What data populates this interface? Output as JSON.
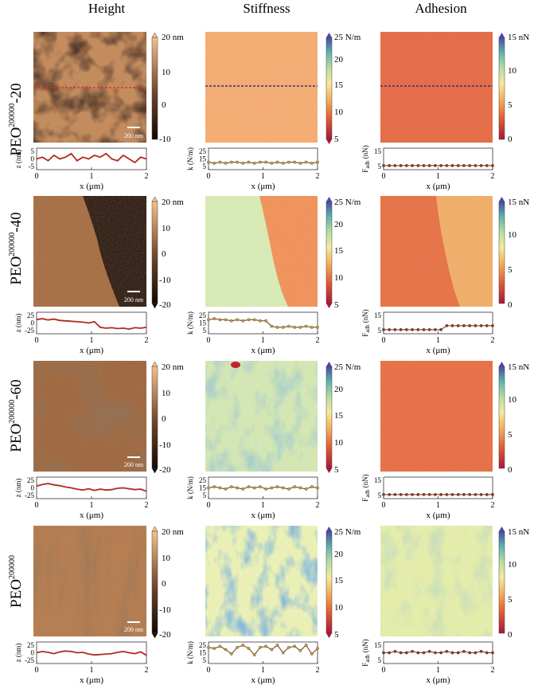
{
  "figure": {
    "column_titles": [
      "Height",
      "Stiffness",
      "Adhesion"
    ],
    "scale_bar_label": "200 nm",
    "profile_x_label_prefix": "x (",
    "profile_x_label_unit": "μm",
    "profile_x_label_suffix": ")",
    "profile_x_ticks": [
      "0",
      "1",
      "2"
    ],
    "colorbars": {
      "height_unit": "nm",
      "stiffness_unit": "N/m",
      "adhesion_unit": "nN",
      "stiffness_ticks": [
        "25",
        "20",
        "15",
        "10",
        "5"
      ],
      "adhesion_ticks": [
        "15",
        "10",
        "5",
        "0"
      ]
    },
    "profile_y_labels": {
      "height": "z (nm)",
      "stiffness": "k (N/m)",
      "adhesion_main": "F",
      "adhesion_sub": "adh",
      "adhesion_unit": " (nN)"
    },
    "rows": [
      {
        "label_main": "PEO",
        "label_sup": "200000",
        "label_suffix": "-20",
        "height_ticks": [
          "20",
          "10",
          "0",
          "-10"
        ],
        "height_profile_ticks": [
          "5",
          "0",
          "-5"
        ],
        "stiffness_profile_ticks": [
          "25",
          "15",
          "5"
        ],
        "adhesion_profile_ticks": [
          "15",
          "5"
        ],
        "has_line_marker": true
      },
      {
        "label_main": "PEO",
        "label_sup": "200000",
        "label_suffix": "-40",
        "height_ticks": [
          "20",
          "10",
          "0",
          "-10",
          "-20"
        ],
        "height_profile_ticks": [
          "25",
          "0",
          "-25"
        ],
        "stiffness_profile_ticks": [
          "25",
          "15",
          "5"
        ],
        "adhesion_profile_ticks": [
          "15",
          "5"
        ],
        "has_line_marker": false
      },
      {
        "label_main": "PEO",
        "label_sup": "200000",
        "label_suffix": "-60",
        "height_ticks": [
          "20",
          "10",
          "0",
          "-10",
          "-20"
        ],
        "height_profile_ticks": [
          "25",
          "0",
          "-25"
        ],
        "stiffness_profile_ticks": [
          "25",
          "15",
          "5"
        ],
        "adhesion_profile_ticks": [
          "15",
          "5"
        ],
        "has_line_marker": false
      },
      {
        "label_main": "PEO",
        "label_sup": "200000",
        "label_suffix": "",
        "height_ticks": [
          "20",
          "10",
          "0",
          "-10",
          "-20"
        ],
        "height_profile_ticks": [
          "25",
          "0",
          "-25"
        ],
        "stiffness_profile_ticks": [
          "25",
          "15",
          "5"
        ],
        "adhesion_profile_ticks": [
          "15",
          "5"
        ],
        "has_line_marker": false
      }
    ],
    "colors": {
      "height_low": "#1a0d06",
      "height_mid": "#8b5a34",
      "height_high": "#f2b47c",
      "profile_height": "#b02a1e",
      "profile_stiffness": "#b8a64a",
      "profile_adhesion": "#8a3a28",
      "line_marker_red": "#e0302a",
      "line_marker_blue": "#3a2a90"
    }
  },
  "profiles": {
    "height": [
      [
        0,
        1,
        -1,
        2,
        0,
        1,
        3,
        -1,
        1,
        0,
        2,
        1,
        3,
        0,
        -1,
        2,
        0,
        -2,
        1,
        0
      ],
      [
        8,
        10,
        7,
        9,
        6,
        5,
        4,
        3,
        2,
        0,
        3,
        -10,
        -12,
        -11,
        -13,
        -12,
        -14,
        -11,
        -12,
        -10
      ],
      [
        4,
        8,
        10,
        7,
        5,
        2,
        0,
        -3,
        -5,
        -2,
        -6,
        -3,
        -5,
        -4,
        -1,
        0,
        -2,
        -4,
        -3,
        -8
      ],
      [
        0,
        3,
        1,
        -2,
        2,
        4,
        3,
        0,
        1,
        -3,
        -5,
        -4,
        -3,
        -2,
        1,
        3,
        0,
        -2,
        2,
        -6
      ]
    ],
    "stiffness": [
      [
        12,
        11,
        12,
        11,
        12,
        12,
        11,
        12,
        11,
        12,
        12,
        11,
        12,
        11,
        12,
        12,
        11,
        12,
        11,
        12
      ],
      [
        18,
        19,
        18,
        18,
        17,
        18,
        17,
        18,
        18,
        17,
        17,
        12,
        11,
        11,
        12,
        11,
        11,
        12,
        11,
        11
      ],
      [
        15,
        16,
        15,
        14,
        16,
        15,
        14,
        16,
        15,
        16,
        14,
        15,
        16,
        15,
        14,
        16,
        15,
        14,
        16,
        15
      ],
      [
        20,
        19,
        21,
        18,
        14,
        20,
        22,
        19,
        13,
        20,
        21,
        18,
        22,
        15,
        20,
        21,
        17,
        22,
        14,
        19
      ]
    ],
    "adhesion": [
      [
        3,
        3,
        3,
        3,
        3,
        3,
        3,
        3,
        3,
        3,
        3,
        3,
        3,
        3,
        3,
        3,
        3,
        3,
        3,
        3
      ],
      [
        3,
        3,
        3,
        3,
        3,
        3,
        3,
        3,
        3,
        3,
        3,
        6,
        6,
        6,
        6,
        6,
        6,
        6,
        6,
        6
      ],
      [
        3,
        3,
        3,
        3,
        3,
        3,
        3,
        3,
        3,
        3,
        3,
        3,
        3,
        3,
        3,
        3,
        3,
        3,
        3,
        3
      ],
      [
        8,
        8,
        9,
        8,
        8,
        9,
        8,
        8,
        9,
        8,
        8,
        9,
        8,
        8,
        9,
        8,
        8,
        9,
        8,
        8
      ]
    ]
  }
}
